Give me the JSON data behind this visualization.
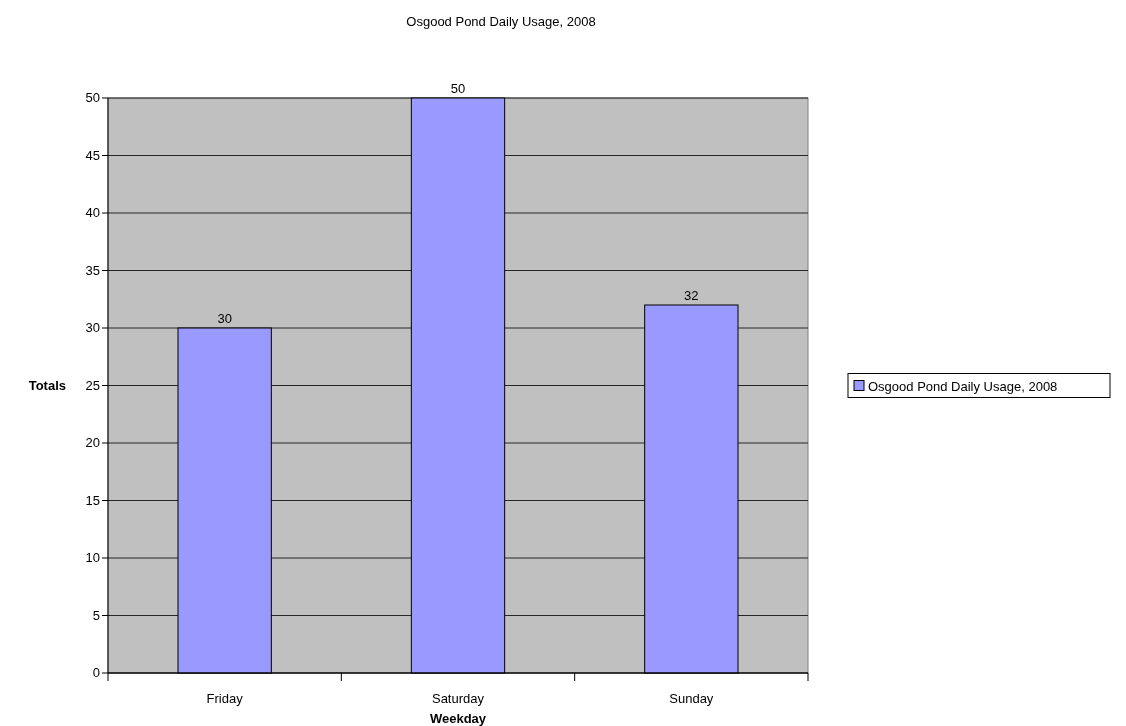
{
  "chart_data": {
    "type": "bar",
    "title": "Osgood Pond Daily Usage, 2008",
    "xlabel": "Weekday",
    "ylabel": "Totals",
    "categories": [
      "Friday",
      "Saturday",
      "Sunday"
    ],
    "series": [
      {
        "name": "Osgood Pond Daily Usage, 2008",
        "color": "#9999ff",
        "values": [
          30,
          50,
          32
        ]
      }
    ],
    "ylim": [
      0,
      50
    ],
    "yticks": [
      0,
      5,
      10,
      15,
      20,
      25,
      30,
      35,
      40,
      45,
      50
    ],
    "grid": "y",
    "legend": "right",
    "data_labels": true
  }
}
